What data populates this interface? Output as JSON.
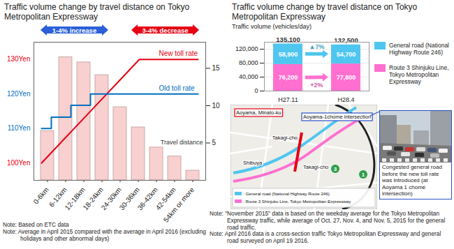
{
  "chart_data": [
    {
      "type": "bar",
      "title": "Traffic volume change by travel distance  on Tokyo Metropolitan Expressway",
      "categories": [
        "0-6km",
        "6-12km",
        "12-18km",
        "18-24km",
        "24-30km",
        "30-36km",
        "36-42km",
        "42-54km",
        "54km or more"
      ],
      "xlabel": "Travel distance",
      "series": [
        {
          "type": "bar",
          "axis": "y2",
          "color": "#f9d0d0",
          "values": [
            6.6,
            16.5,
            15.8,
            14.1,
            9.8,
            7.1,
            4.4,
            3.2,
            1.3
          ]
        },
        {
          "name": "New toll rate",
          "type": "line",
          "line_style": "solid",
          "color": "#e60012",
          "values": [
            100,
            106,
            112,
            118,
            124,
            130,
            130,
            130,
            130
          ]
        },
        {
          "name": "Old toll rate",
          "type": "line",
          "line_style": "step",
          "color": "#0070c0",
          "values": [
            110,
            113.3,
            116.7,
            120,
            120,
            120,
            120,
            120,
            120
          ]
        }
      ],
      "ylim": [
        95,
        135
      ],
      "yticks": [
        {
          "value": 100,
          "label": "100Yen",
          "color": "#e60012"
        },
        {
          "value": 110,
          "label": "110Yen",
          "color": "#0070c0"
        },
        {
          "value": 120,
          "label": "120Yen",
          "color": "#0070c0"
        },
        {
          "value": 130,
          "label": "130Yen",
          "color": "#e60012"
        }
      ],
      "y2lim": [
        0,
        18.5
      ],
      "y2ticks": [
        5,
        10,
        15
      ],
      "annotations": [
        {
          "text": "1-4% increase",
          "color": "#2a5fd8",
          "from": "0-6km",
          "to": "18-24km"
        },
        {
          "text": "3-4% decrease",
          "color": "#e60012",
          "from": "30-36km",
          "to": "54km or more"
        }
      ],
      "notes": [
        "Note: Based on ETC data",
        "Note: Average in April 2015 compared with the average in April 2016 (excluding holidays and other abnormal days)"
      ]
    },
    {
      "type": "bar",
      "stacked": true,
      "data_labels": true,
      "grid": true,
      "legend": "right",
      "title": "Traffic volume change by travel distance on Tokyo Metropolitan Expressway",
      "ylabel": "Traffic volume (vehicles/day)",
      "categories": [
        "H27.11",
        "H28.4"
      ],
      "series": [
        {
          "name": "Route 3 Shinjuku Line, Tokyo Metropolitan Expressway",
          "color": "#ff6fd0",
          "values": [
            76200,
            77800
          ],
          "value_labels": [
            "76,200",
            "77,800"
          ],
          "change_label": "+2%"
        },
        {
          "name": "General road (National Highway Route 246)",
          "color": "#4fc6ef",
          "values": [
            58900,
            54700
          ],
          "value_labels": [
            "58,900",
            "54,700"
          ],
          "change_label": "▲7%"
        }
      ],
      "totals": [
        135100,
        132500
      ],
      "total_labels": [
        "135,100",
        "132,500"
      ],
      "ylim": [
        0,
        140000
      ],
      "yticks": [
        0,
        {
          "value": 40000,
          "label": "40,000"
        },
        {
          "value": 80000,
          "label": "80,000"
        },
        {
          "value": 120000,
          "label": "120,000"
        }
      ],
      "notes": [
        "Note: \"November 2015\" data is based on the weekday average for the Tokyo Metropolitan Expressway traffic, while average of Oct. 27, Nov. 4, and Nov. 5, 2015 for the general road traffic.",
        "Note: April 2016 data is a cross-section traffic Tokyo Metropolitan Expressway and general road surveyed on April 19 2016."
      ]
    }
  ],
  "map": {
    "labels": {
      "aoyama": "Aoyama, Minato-ku",
      "intersection": "Aoyama-1chome intersection",
      "takagi_north": "Takagi-cho",
      "takagi_south": "Takagi-cho",
      "shibuya": "Shibuya"
    },
    "route_shields": [
      "3",
      "1"
    ],
    "legend": [
      {
        "text": ": General road (National Highway Route 246)",
        "color": "#4fc6ef"
      },
      {
        "text": ": Route 3 Shinjuku Line, Tokyo Metropolitan Expressway",
        "color": "#ff6fd0"
      }
    ]
  },
  "photo": {
    "caption": "Congested general road before the new toll rate was introduced (at Aoyama 1 chome intersection)"
  }
}
